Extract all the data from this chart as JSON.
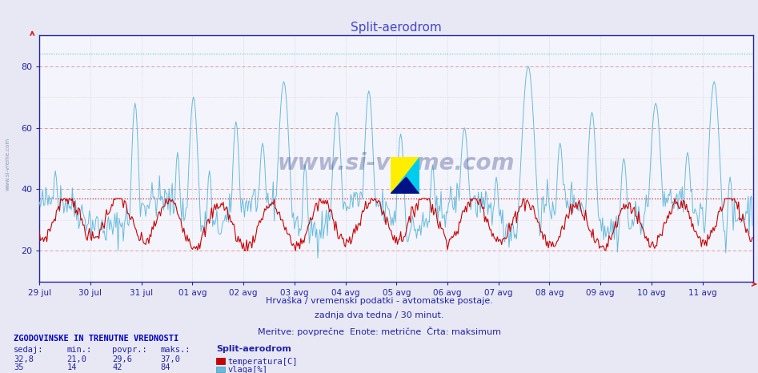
{
  "title": "Split-aerodrom",
  "title_color": "#4444cc",
  "bg_color": "#e8e8f4",
  "plot_bg_color": "#f4f4fc",
  "temp_color": "#cc0000",
  "humid_color": "#66bbdd",
  "temp_max_line": 37.0,
  "humid_max_line": 84.0,
  "ylim": [
    10,
    90
  ],
  "yticks": [
    20,
    40,
    60,
    80
  ],
  "xticklabels": [
    "29 jul",
    "30 jul",
    "31 jul",
    "01 avg",
    "02 avg",
    "03 avg",
    "04 avg",
    "05 avg",
    "06 avg",
    "07 avg",
    "08 avg",
    "09 avg",
    "10 avg",
    "11 avg"
  ],
  "xlabel_text_1": "Hrvaška / vremenski podatki - avtomatske postaje.",
  "xlabel_text_2": "zadnja dva tedna / 30 minut.",
  "xlabel_text_3": "Meritve: povprečne  Enote: metrične  Črta: maksimum",
  "footer_title": "ZGODOVINSKE IN TRENUTNE VREDNOSTI",
  "footer_cols": [
    "sedaj:",
    "min.:",
    "povpr.:",
    "maks.:"
  ],
  "footer_temp": [
    "32,8",
    "21,0",
    "29,6",
    "37,0"
  ],
  "footer_humid": [
    "35",
    "14",
    "42",
    "84"
  ],
  "footer_station": "Split-aerodrom",
  "footer_temp_label": "temperatura[C]",
  "footer_humid_label": "vlaga[%]",
  "watermark": "www.si-vreme.com",
  "n_days": 14,
  "points_per_day": 48
}
